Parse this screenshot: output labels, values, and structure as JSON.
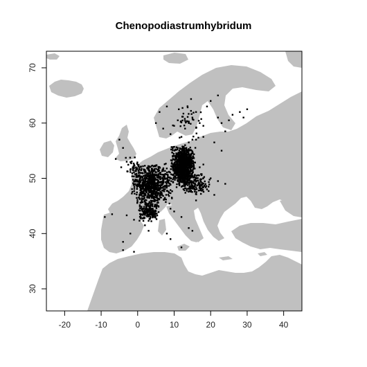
{
  "map": {
    "title": "Chenopodiastrumhybridum",
    "x_axis": {
      "range": [
        -25,
        45
      ],
      "ticks": [
        "-20",
        "-10",
        "0",
        "10",
        "20",
        "30",
        "40"
      ]
    },
    "y_axis": {
      "range": [
        26,
        73
      ],
      "ticks": [
        "30",
        "40",
        "50",
        "60",
        "70"
      ]
    },
    "land_color": "#c0c0c0",
    "ocean_color": "#ffffff",
    "point_color": "#000000"
  },
  "chart_data": {
    "type": "scatter",
    "title": "Chenopodiastrumhybridum",
    "xlabel": "",
    "ylabel": "",
    "xlim": [
      -25,
      45
    ],
    "ylim": [
      26,
      73
    ],
    "grid": false,
    "clusters": [
      {
        "lon": [
          9,
          16
        ],
        "lat": [
          49,
          56
        ],
        "density": "very-high"
      },
      {
        "lon": [
          -2,
          10
        ],
        "lat": [
          45,
          53
        ],
        "density": "high"
      },
      {
        "lon": [
          0,
          6
        ],
        "lat": [
          42,
          46
        ],
        "density": "medium"
      },
      {
        "lon": [
          10,
          20
        ],
        "lat": [
          47,
          51
        ],
        "density": "medium"
      },
      {
        "lon": [
          -4,
          2
        ],
        "lat": [
          50,
          54
        ],
        "density": "low"
      },
      {
        "lon": [
          8,
          19
        ],
        "lat": [
          56,
          65
        ],
        "density": "low"
      }
    ],
    "points": [
      [
        -5,
        57
      ],
      [
        -4,
        55.5
      ],
      [
        -3,
        53
      ],
      [
        -2,
        51.5
      ],
      [
        -6,
        53.5
      ],
      [
        -4.5,
        52
      ],
      [
        -9,
        43
      ],
      [
        -7,
        43.5
      ],
      [
        -3,
        43.3
      ],
      [
        -1,
        42.5
      ],
      [
        -2,
        40
      ],
      [
        -4,
        37
      ],
      [
        -4,
        38.5
      ],
      [
        -1,
        36.7
      ],
      [
        2,
        41.5
      ],
      [
        3,
        40.5
      ],
      [
        3,
        42.3
      ],
      [
        9,
        44.5
      ],
      [
        10,
        44
      ],
      [
        8,
        40
      ],
      [
        9,
        39
      ],
      [
        12,
        43
      ],
      [
        14,
        41
      ],
      [
        12,
        37.5
      ],
      [
        15,
        40.5
      ],
      [
        17,
        52
      ],
      [
        18,
        52.5
      ],
      [
        20,
        50
      ],
      [
        22,
        49.5
      ],
      [
        24,
        49
      ],
      [
        19,
        48
      ],
      [
        21,
        47
      ],
      [
        16,
        46
      ],
      [
        9,
        58
      ],
      [
        10,
        59.5
      ],
      [
        11,
        60.5
      ],
      [
        12,
        57.5
      ],
      [
        13,
        59
      ],
      [
        14,
        60
      ],
      [
        15,
        61
      ],
      [
        16,
        62
      ],
      [
        17,
        60
      ],
      [
        18,
        59.5
      ],
      [
        19,
        63
      ],
      [
        20,
        64
      ],
      [
        22,
        61
      ],
      [
        23,
        60
      ],
      [
        25,
        60.5
      ],
      [
        26,
        61.5
      ],
      [
        28,
        62
      ],
      [
        29,
        61
      ],
      [
        30,
        62.5
      ],
      [
        13,
        56
      ],
      [
        14,
        56.5
      ],
      [
        15,
        57
      ],
      [
        16,
        57
      ],
      [
        18,
        57.5
      ],
      [
        6,
        62
      ],
      [
        7,
        59
      ],
      [
        5,
        60
      ],
      [
        8,
        63
      ],
      [
        22,
        65
      ],
      [
        24,
        58.5
      ],
      [
        21,
        56.5
      ],
      [
        23,
        55
      ]
    ]
  }
}
